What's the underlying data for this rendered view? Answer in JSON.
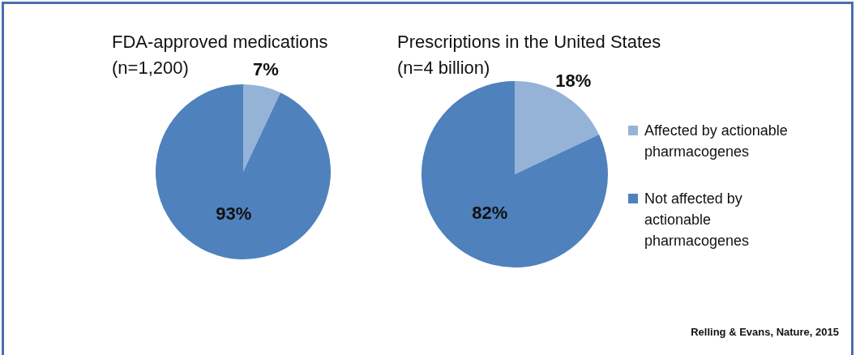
{
  "chart_data": [
    {
      "type": "pie",
      "title": "FDA-approved medications",
      "subtitle": "(n=1,200)",
      "values": [
        7,
        93
      ],
      "colors": [
        "#95b3d7",
        "#4f81bd"
      ],
      "value_labels": [
        "7%",
        "93%"
      ]
    },
    {
      "type": "pie",
      "title": "Prescriptions in the United States",
      "subtitle": "(n=4 billion)",
      "categories": [
        "Affected by actionable pharmacogenes",
        "Not affected by actionable pharmacogenes"
      ],
      "values": [
        18,
        82
      ],
      "colors": [
        "#95b3d7",
        "#4f81bd"
      ],
      "value_labels": [
        "18%",
        "82%"
      ],
      "legend": "right",
      "annotations": [
        "Relling & Evans, Nature, 2015"
      ]
    }
  ]
}
